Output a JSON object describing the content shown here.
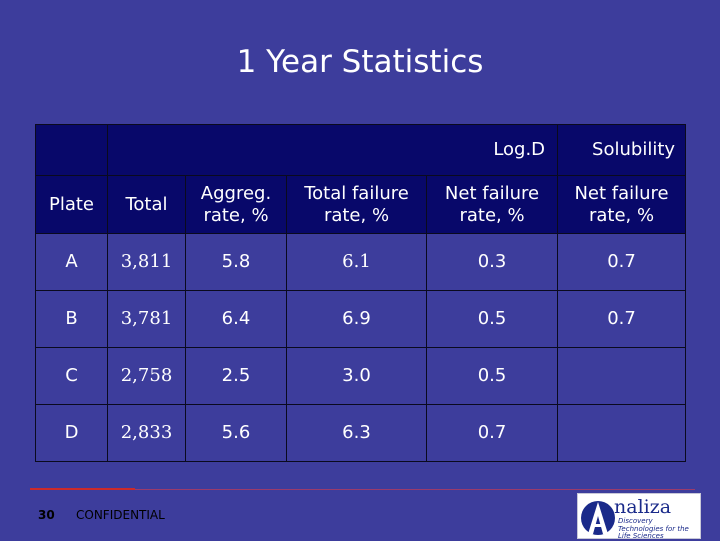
{
  "title": "1 Year Statistics",
  "table": {
    "group_headers": {
      "logd": "Log.D",
      "solubility": "Solubility"
    },
    "columns": [
      "Plate",
      "Total",
      "Aggreg. rate, %",
      "Total failure rate, %",
      "Net failure rate, %",
      "Net failure rate, %"
    ],
    "rows": [
      [
        "A",
        "3,811",
        "5.8",
        "6.1",
        "0.3",
        "0.7"
      ],
      [
        "B",
        "3,781",
        "6.4",
        "6.9",
        "0.5",
        "0.7"
      ],
      [
        "C",
        "2,758",
        "2.5",
        "3.0",
        "0.5",
        ""
      ],
      [
        "D",
        "2,833",
        "5.6",
        "6.3",
        "0.7",
        ""
      ]
    ]
  },
  "footer": {
    "page_number": "30",
    "confidential": "CONFIDENTIAL",
    "logo_text": "naliza",
    "logo_tagline": "Discovery Technologies for the Life Sciences",
    "colors": {
      "background": "#3d3d9c",
      "header": "#08086a",
      "rule": "#cc2a2a"
    }
  }
}
